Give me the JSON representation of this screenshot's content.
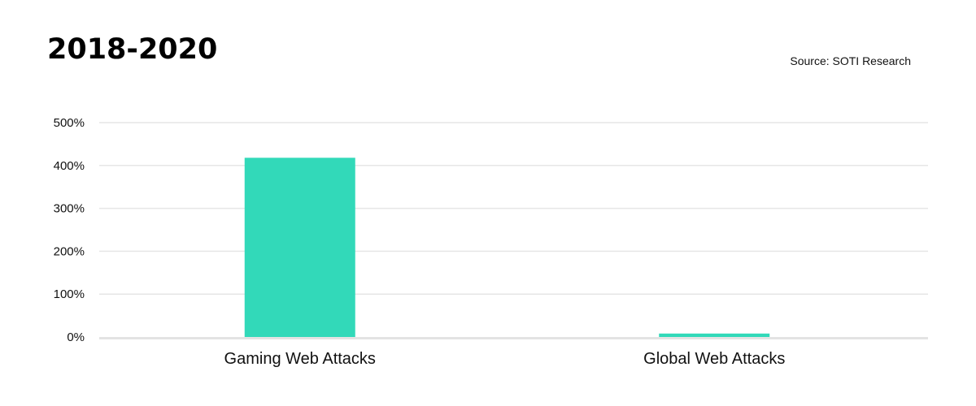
{
  "chart_data": {
    "type": "bar",
    "title": "2018-2020",
    "source": "Source: SOTI Research",
    "xlabel": "",
    "ylabel": "",
    "categories": [
      "Gaming Web Attacks",
      "Global Web Attacks"
    ],
    "values": [
      418,
      8
    ],
    "ylim": [
      0,
      500
    ],
    "yticks": [
      0,
      100,
      200,
      300,
      400,
      500
    ],
    "tick_suffix": "%",
    "grid": true,
    "legend": "none",
    "bar_color": "#32D9B9",
    "grid_color": "#e6e6e6",
    "baseline_color": "#e3e3e3"
  }
}
